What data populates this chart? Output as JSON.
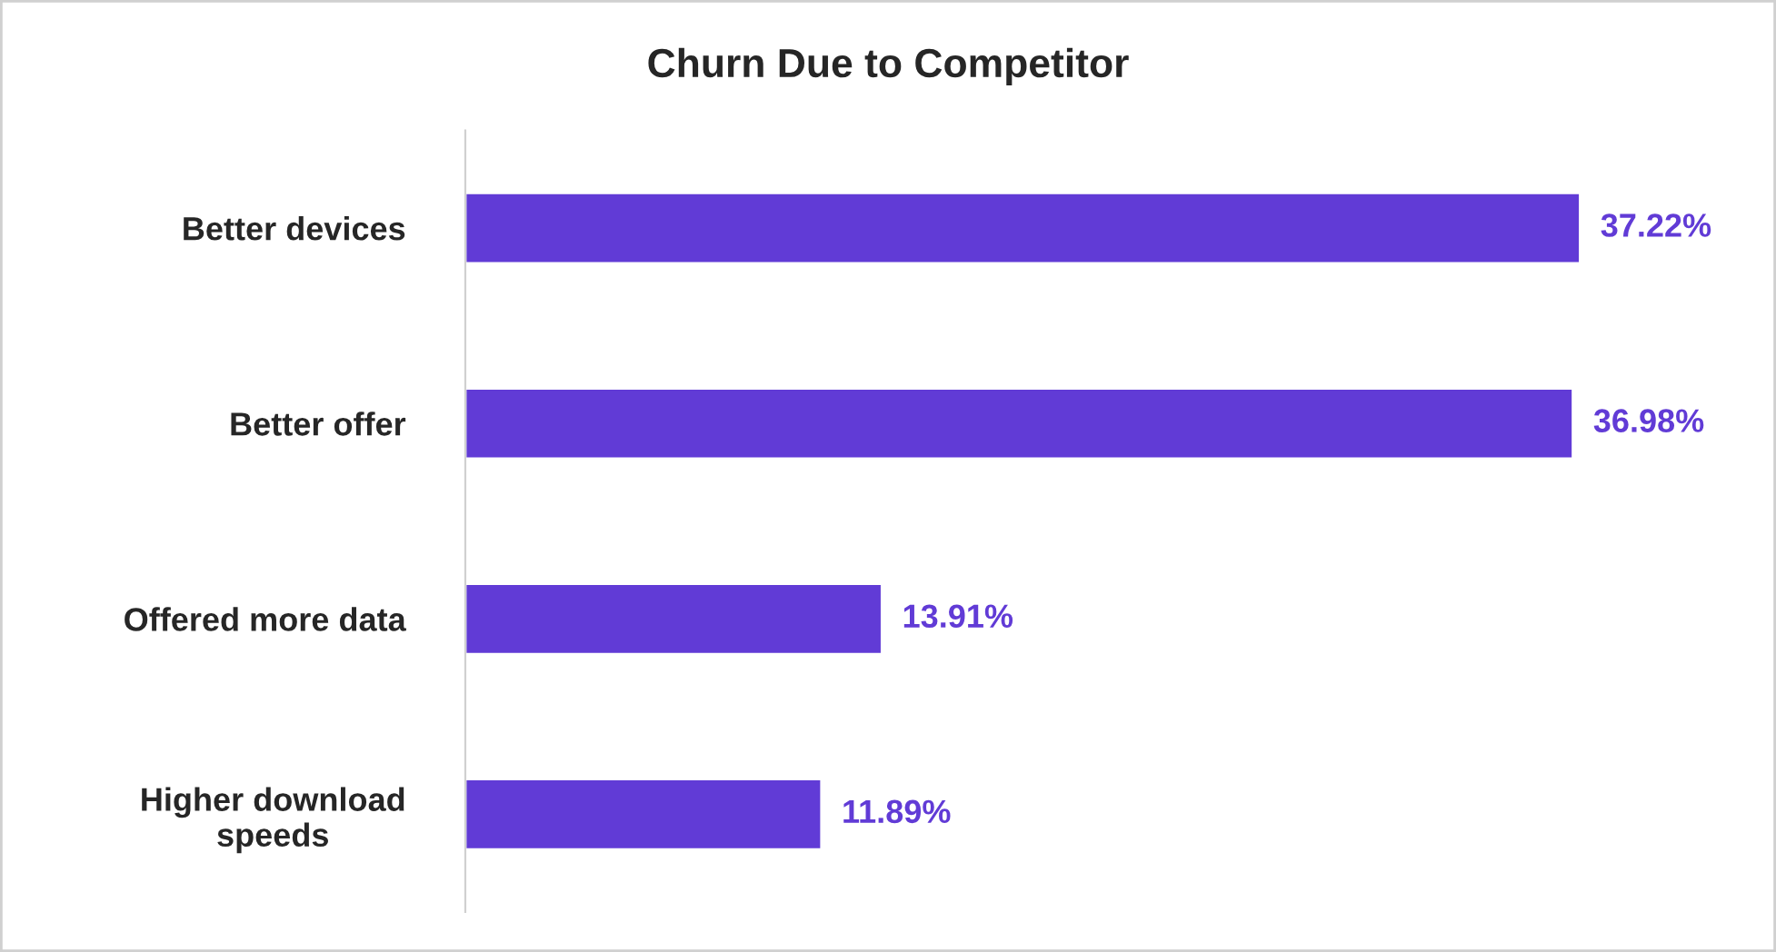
{
  "chart_data": {
    "type": "bar",
    "orientation": "horizontal",
    "title": "Churn Due to Competitor",
    "categories": [
      "Better devices",
      "Better offer",
      "Offered more data",
      "Higher download\nspeeds"
    ],
    "values": [
      37.22,
      36.98,
      13.91,
      11.89
    ],
    "value_labels": [
      "37.22%",
      "36.98%",
      "13.91%",
      "11.89%"
    ],
    "color": "#613bd6",
    "tick_labels": "y",
    "grid": false,
    "legend": false
  }
}
